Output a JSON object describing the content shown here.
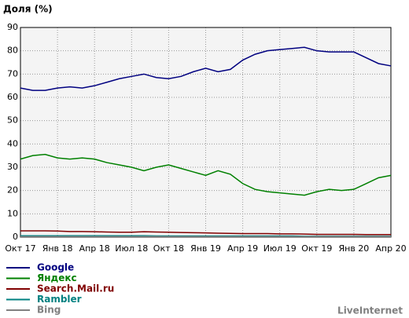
{
  "chart_data": {
    "type": "line",
    "title": "Доля (%)",
    "categories": [
      "Окт 17",
      null,
      null,
      "Янв 18",
      null,
      null,
      "Апр 18",
      null,
      null,
      "Июл 18",
      null,
      null,
      "Окт 18",
      null,
      null,
      "Янв 19",
      null,
      null,
      "Апр 19",
      null,
      null,
      "Июл 19",
      null,
      null,
      "Окт 19",
      null,
      null,
      "Янв 20",
      null,
      null,
      "Апр 20"
    ],
    "series": [
      {
        "name": "Google",
        "color": "#000080",
        "values": [
          64,
          63,
          63,
          64,
          64.5,
          64,
          65,
          66.5,
          68,
          69,
          70,
          68.5,
          68,
          69,
          71,
          72.5,
          71,
          72,
          76,
          78.5,
          80,
          80.5,
          81,
          81.5,
          80,
          79.5,
          79.5,
          79.5,
          77,
          74.5,
          73.5
        ]
      },
      {
        "name": "Яндекс",
        "color": "#008000",
        "values": [
          33.5,
          35,
          35.5,
          34,
          33.5,
          34,
          33.5,
          32,
          31,
          30,
          28.5,
          30,
          31,
          29.5,
          28,
          26.5,
          28.5,
          27,
          23,
          20.5,
          19.5,
          19,
          18.5,
          18,
          19.5,
          20.5,
          20,
          20.5,
          23,
          25.5,
          26.5
        ]
      },
      {
        "name": "Search.Mail.ru",
        "color": "#800000",
        "values": [
          2.7,
          2.7,
          2.7,
          2.6,
          2.4,
          2.4,
          2.3,
          2.2,
          2.1,
          2.1,
          2.3,
          2.2,
          2.1,
          2,
          1.9,
          1.8,
          1.7,
          1.6,
          1.5,
          1.5,
          1.5,
          1.4,
          1.4,
          1.3,
          1.2,
          1.2,
          1.2,
          1.2,
          1.1,
          1.1,
          1.1
        ]
      },
      {
        "name": "Rambler",
        "color": "#008080",
        "values": [
          0.6,
          0.6,
          0.6,
          0.6,
          0.6,
          0.6,
          0.6,
          0.6,
          0.6,
          0.6,
          0.6,
          0.5,
          0.5,
          0.5,
          0.5,
          0.5,
          0.5,
          0.5,
          0.5,
          0.5,
          0.5,
          0.5,
          0.5,
          0.4,
          0.4,
          0.4,
          0.4,
          0.4,
          0.4,
          0.4,
          0.4
        ]
      },
      {
        "name": "Bing",
        "color": "#808080",
        "values": [
          0.2,
          0.2,
          0.2,
          0.2,
          0.2,
          0.2,
          0.2,
          0.2,
          0.2,
          0.2,
          0.2,
          0.2,
          0.2,
          0.2,
          0.2,
          0.2,
          0.2,
          0.2,
          0.2,
          0.2,
          0.2,
          0.2,
          0.2,
          0.2,
          0.2,
          0.2,
          0.2,
          0.2,
          0.2,
          0.2,
          0.2
        ]
      }
    ],
    "ylim": [
      0,
      90
    ],
    "yticks": [
      0,
      10,
      20,
      30,
      40,
      50,
      60,
      70,
      80,
      90
    ],
    "grid": true,
    "watermark": "LiveInternet"
  }
}
